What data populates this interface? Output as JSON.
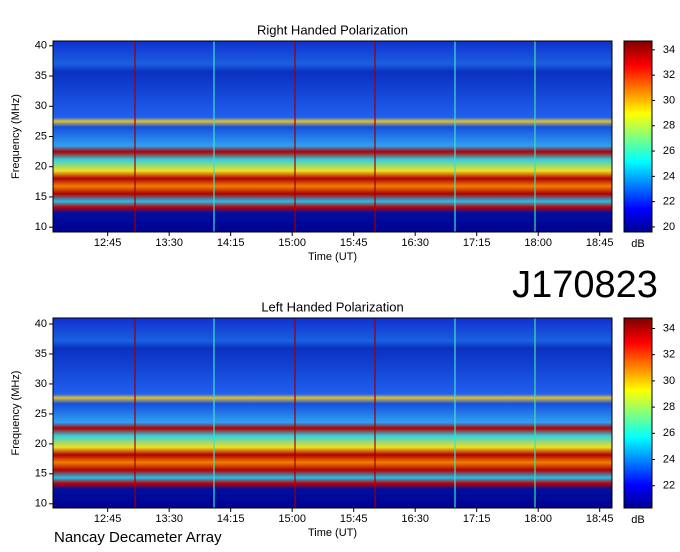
{
  "chart_data": [
    {
      "type": "heatmap",
      "title": "Right Handed Polarization",
      "xlabel": "Time (UT)",
      "ylabel": "Frequency (MHz)",
      "xlim": [
        "12:05",
        "18:54"
      ],
      "xticks": [
        "12:45",
        "13:30",
        "14:15",
        "15:00",
        "15:45",
        "16:30",
        "17:15",
        "18:00",
        "18:45"
      ],
      "ylim": [
        9.2,
        40.8
      ],
      "yticks": [
        10,
        15,
        20,
        25,
        30,
        35,
        40
      ],
      "colorbar_label": "dB",
      "zlim": [
        19.6,
        34.7
      ],
      "zticks": [
        20,
        22,
        24,
        26,
        28,
        30,
        32,
        34
      ]
    },
    {
      "type": "heatmap",
      "title": "Left Handed Polarization",
      "xlabel": "Time (UT)",
      "ylabel": "Frequency (MHz)",
      "xlim": [
        "12:05",
        "18:54"
      ],
      "xticks": [
        "12:45",
        "13:30",
        "14:15",
        "15:00",
        "15:45",
        "16:30",
        "17:15",
        "18:00",
        "18:45"
      ],
      "ylim": [
        9.3,
        41
      ],
      "yticks": [
        10,
        15,
        20,
        25,
        30,
        35,
        40
      ],
      "colorbar_label": "dB",
      "zlim": [
        20.3,
        34.8
      ],
      "zticks": [
        22,
        24,
        26,
        28,
        30,
        32,
        34
      ]
    }
  ],
  "source_id": "J170823",
  "footer": "Nancay Decameter Array"
}
